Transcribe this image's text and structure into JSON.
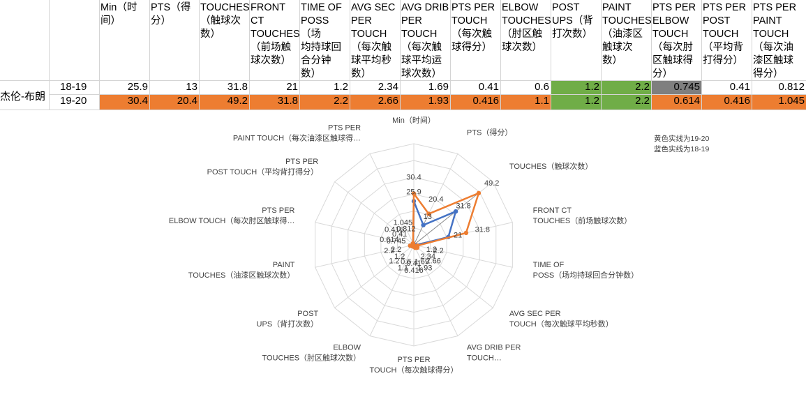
{
  "table": {
    "player": "杰伦-布朗",
    "headers": [
      "Min（时\n间）",
      "PTS（得\n分）",
      "TOUCHES\n（触球次\n数）",
      "FRONT CT\nTOUCHES\n（前场触\n球次数）",
      "TIME OF\nPOSS（场\n均持球回\n合分钟\n数）",
      "AVG SEC\nPER\nTOUCH\n（每次触\n球平均秒\n数）",
      "AVG DRIB\nPER\nTOUCH\n（每次触\n球平均运\n球次数）",
      "PTS PER\nTOUCH\n（每次触\n球得分）",
      "ELBOW\nTOUCHES\n（肘区触\n球次数）",
      "POST\nUPS（背\n打次数）",
      "PAINT\nTOUCHES\n（油漆区\n触球次\n数）",
      "PTS PER\nELBOW\nTOUCH\n（每次肘\n区触球得\n分）",
      "PTS PER\nPOST\nTOUCH\n（平均背\n打得分）",
      "PTS PER\nPAINT\nTOUCH\n（每次油\n漆区触球\n得分）"
    ],
    "rows": [
      {
        "season": "18-19",
        "values": [
          "25.9",
          "13",
          "31.8",
          "21",
          "1.2",
          "2.34",
          "1.69",
          "0.41",
          "0.6",
          "1.2",
          "2.2",
          "0.745",
          "0.41",
          "0.812"
        ]
      },
      {
        "season": "19-20",
        "values": [
          "30.4",
          "20.4",
          "49.2",
          "31.8",
          "2.2",
          "2.66",
          "1.93",
          "0.416",
          "1.1",
          "1.2",
          "2.2",
          "0.614",
          "0.416",
          "1.045"
        ]
      }
    ],
    "colors": {
      "orange": "#ED7D31",
      "green": "#70AD47",
      "gray": "#7F7F7F"
    }
  },
  "chart_data": {
    "type": "radar",
    "categories": [
      "Min（时间）",
      "PTS（得分）",
      "TOUCHES（触球次数）",
      "FRONT CT\nTOUCHES（前场触球次数）",
      "TIME OF\nPOSS（场均持球回合分钟数）",
      "AVG SEC PER\nTOUCH（每次触球平均秒数）",
      "AVG DRIB PER\nTOUCH…",
      "PTS PER\nTOUCH（每次触球得分）",
      "ELBOW\nTOUCHES（肘区触球次数）",
      "POST\nUPS（背打次数）",
      "PAINT\nTOUCHES（油漆区触球次数）",
      "PTS PER\nELBOW TOUCH（每次肘区触球得…",
      "PTS PER\nPOST TOUCH（平均背打得分）",
      "PTS PER\nPAINT TOUCH（每次油漆区触球得…"
    ],
    "series": [
      {
        "values": [
          25.9,
          13,
          31.8,
          21,
          1.2,
          2.34,
          1.69,
          0.41,
          0.6,
          1.2,
          2.2,
          0.745,
          0.41,
          0.812
        ],
        "color": "#4472C4"
      },
      {
        "values": [
          30.4,
          20.4,
          49.2,
          31.8,
          2.2,
          2.66,
          1.93,
          0.416,
          1.1,
          1.2,
          2.2,
          0.614,
          0.416,
          1.045
        ],
        "color": "#ED7D31"
      }
    ],
    "rmax": 60,
    "grid_rings": 6,
    "notes": [
      "黄色实线为19-20",
      "蓝色实线为18-19"
    ]
  }
}
